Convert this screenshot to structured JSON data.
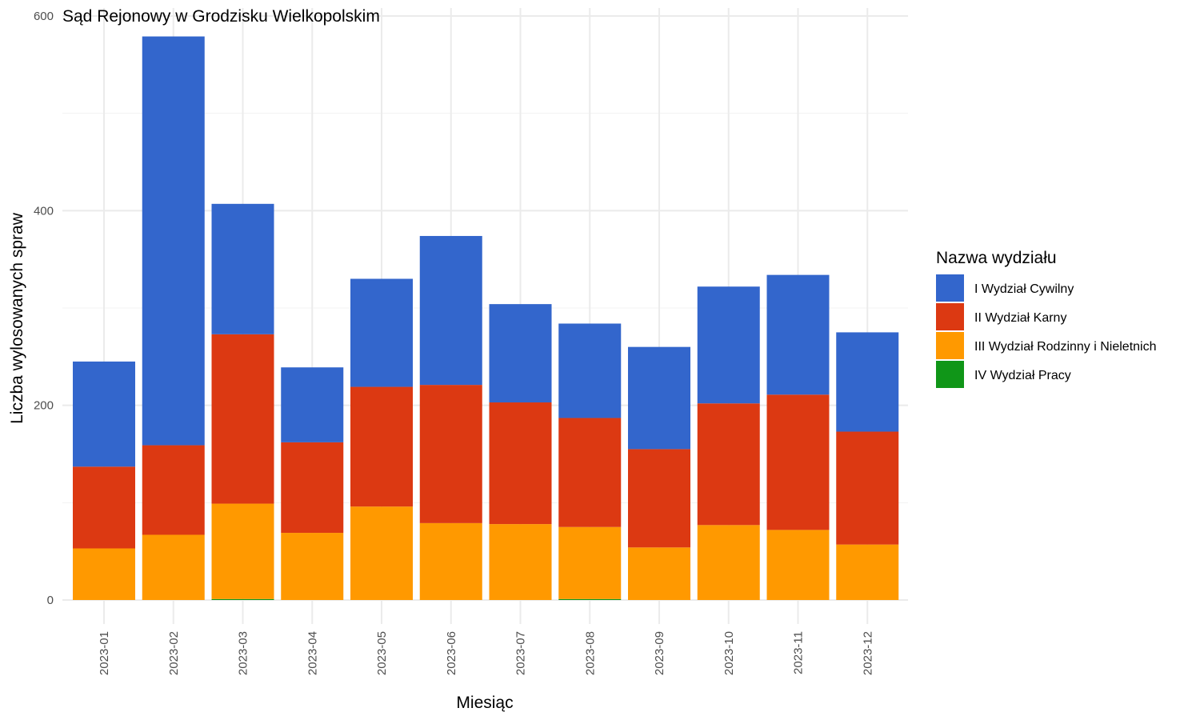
{
  "chart_data": {
    "type": "bar",
    "stacked": true,
    "title": "Sąd Rejonowy w Grodzisku Wielkopolskim",
    "xlabel": "Miesiąc",
    "ylabel": "Liczba wylosowanych spraw",
    "ylim": [
      0,
      600
    ],
    "yticks": [
      0,
      200,
      400,
      600
    ],
    "grid": true,
    "legend_title": "Nazwa wydziału",
    "legend_position": "right",
    "categories": [
      "2023-01",
      "2023-02",
      "2023-03",
      "2023-04",
      "2023-05",
      "2023-06",
      "2023-07",
      "2023-08",
      "2023-09",
      "2023-10",
      "2023-11",
      "2023-12"
    ],
    "series": [
      {
        "name": "IV Wydział Pracy",
        "color": "#109618",
        "values": [
          0,
          0,
          1,
          0,
          0,
          0,
          0,
          1,
          0,
          0,
          0,
          0
        ]
      },
      {
        "name": "III Wydział Rodzinny i Nieletnich",
        "color": "#ff9900",
        "values": [
          53,
          67,
          98,
          69,
          96,
          79,
          78,
          74,
          54,
          77,
          72,
          57
        ]
      },
      {
        "name": "II Wydział Karny",
        "color": "#dc3912",
        "values": [
          84,
          92,
          174,
          93,
          123,
          142,
          125,
          112,
          101,
          125,
          139,
          116
        ]
      },
      {
        "name": "I Wydział Cywilny",
        "color": "#3366cc",
        "values": [
          108,
          420,
          134,
          77,
          111,
          153,
          101,
          97,
          105,
          120,
          123,
          102
        ]
      }
    ],
    "legend_order": [
      "I Wydział Cywilny",
      "II Wydział Karny",
      "III Wydział Rodzinny i Nieletnich",
      "IV Wydział Pracy"
    ]
  }
}
